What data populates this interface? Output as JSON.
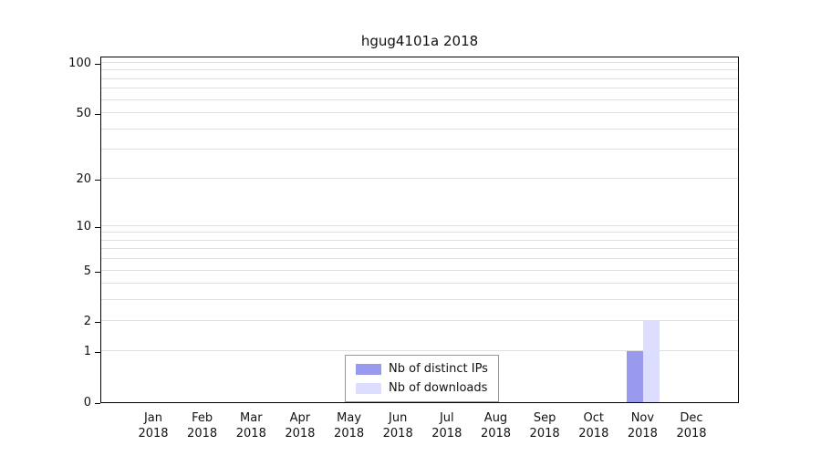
{
  "title": "hgug4101a 2018",
  "legend": {
    "items": [
      {
        "label": "Nb of distinct IPs",
        "color": "#9999ee"
      },
      {
        "label": "Nb of downloads",
        "color": "#ddddff"
      }
    ]
  },
  "chart_data": {
    "type": "bar",
    "title": "hgug4101a 2018",
    "scale": "log1p",
    "year": "2018",
    "categories": [
      "Jan",
      "Feb",
      "Mar",
      "Apr",
      "May",
      "Jun",
      "Jul",
      "Aug",
      "Sep",
      "Oct",
      "Nov",
      "Dec"
    ],
    "series": [
      {
        "name": "Nb of distinct IPs",
        "color": "#9999ee",
        "values": [
          0,
          0,
          0,
          0,
          0,
          0,
          0,
          0,
          0,
          0,
          1,
          0
        ]
      },
      {
        "name": "Nb of downloads",
        "color": "#ddddff",
        "values": [
          0,
          0,
          0,
          0,
          0,
          0,
          0,
          0,
          0,
          0,
          2,
          0
        ]
      }
    ],
    "y_axis": {
      "max": 100,
      "tick_values": [
        0,
        1,
        2,
        5,
        10,
        20,
        50,
        100
      ],
      "tick_labels": [
        "0",
        "1",
        "2",
        "5",
        "10",
        "20",
        "50",
        "100"
      ],
      "minor_gridlines": [
        1,
        2,
        3,
        4,
        5,
        6,
        7,
        8,
        9,
        10,
        20,
        30,
        40,
        50,
        60,
        70,
        80,
        90,
        100
      ]
    },
    "grid": true,
    "legend_position": "bottom-center"
  }
}
